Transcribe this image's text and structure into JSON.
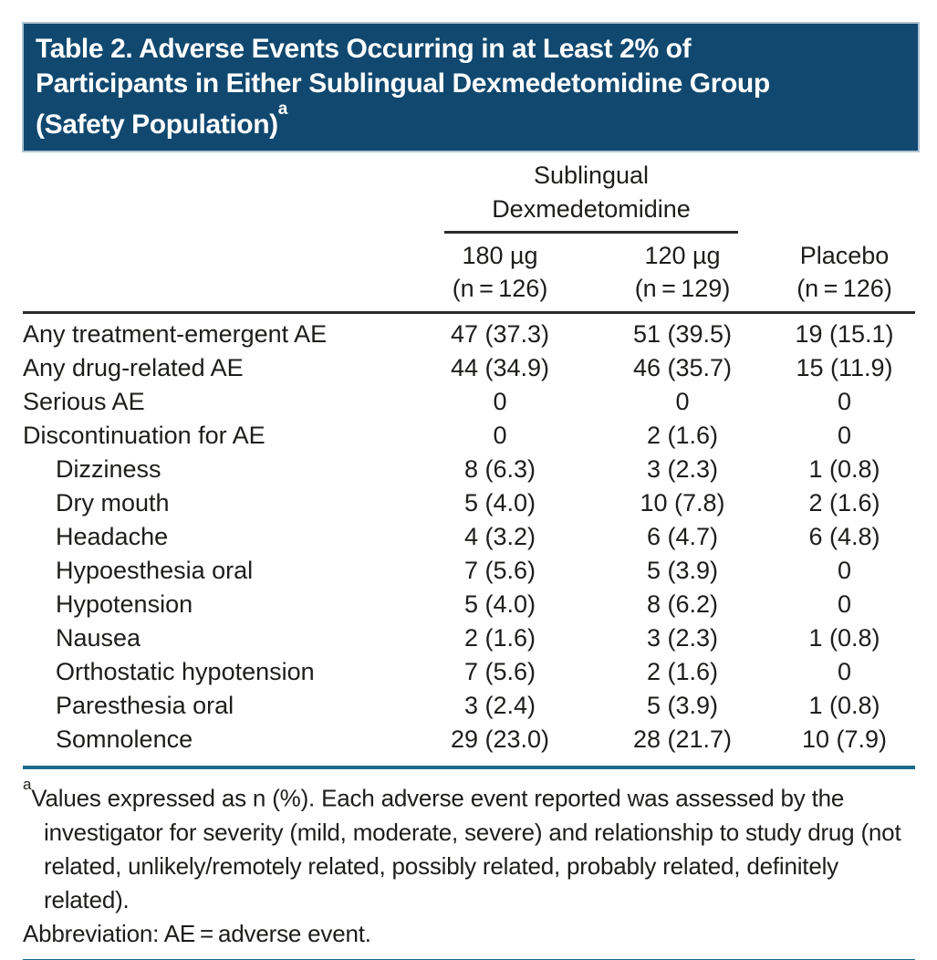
{
  "colors": {
    "title_bar_bg": "#11486F",
    "title_text": "#ffffff",
    "teal_rule": "#1b6a8e",
    "black_rule": "#2b2b29",
    "body_text": "#1d1d1b",
    "page_bg": "#ffffff"
  },
  "title": {
    "lines": [
      "Table 2. Adverse Events Occurring in at Least 2% of",
      "Participants in Either Sublingual Dexmedetomidine Group",
      "(Safety Population)"
    ],
    "footnote_marker": "a"
  },
  "table": {
    "spanner": {
      "line1": "Sublingual",
      "line2": "Dexmedetomidine"
    },
    "columns": [
      {
        "line1": "180 µg",
        "line2": "(n = 126)"
      },
      {
        "line1": "120 µg",
        "line2": "(n = 129)"
      },
      {
        "line1": "Placebo",
        "line2": "(n = 126)"
      }
    ],
    "rows": [
      {
        "label": "Any treatment-emergent AE",
        "c1": "47 (37.3)",
        "c2": "51 (39.5)",
        "c3": "19 (15.1)"
      },
      {
        "label": "Any drug-related AE",
        "c1": "44 (34.9)",
        "c2": "46 (35.7)",
        "c3": "15 (11.9)"
      },
      {
        "label": "Serious AE",
        "c1": "0",
        "c2": "0",
        "c3": "0"
      },
      {
        "label": "Discontinuation for AE",
        "c1": "0",
        "c2": "2 (1.6)",
        "c3": "0"
      },
      {
        "label": "Dizziness",
        "c1": "8 (6.3)",
        "c2": "3 (2.3)",
        "c3": "1 (0.8)"
      },
      {
        "label": "Dry mouth",
        "c1": "5 (4.0)",
        "c2": "10 (7.8)",
        "c3": "2 (1.6)"
      },
      {
        "label": "Headache",
        "c1": "4 (3.2)",
        "c2": "6 (4.7)",
        "c3": "6 (4.8)"
      },
      {
        "label": "Hypoesthesia oral",
        "c1": "7 (5.6)",
        "c2": "5 (3.9)",
        "c3": "0"
      },
      {
        "label": "Hypotension",
        "c1": "5 (4.0)",
        "c2": "8 (6.2)",
        "c3": "0"
      },
      {
        "label": "Nausea",
        "c1": "2 (1.6)",
        "c2": "3 (2.3)",
        "c3": "1 (0.8)"
      },
      {
        "label": "Orthostatic hypotension",
        "c1": "7 (5.6)",
        "c2": "2 (1.6)",
        "c3": "0"
      },
      {
        "label": "Paresthesia oral",
        "c1": "3 (2.4)",
        "c2": "5 (3.9)",
        "c3": "1 (0.8)"
      },
      {
        "label": "Somnolence",
        "c1": "29 (23.0)",
        "c2": "28 (21.7)",
        "c3": "10 (7.9)"
      }
    ]
  },
  "footnotes": {
    "marker": "a",
    "note": "Values expressed as n (%). Each adverse event reported was assessed by the investigator for severity (mild, moderate, severe) and relationship to study drug (not related, unlikely/remotely related, possibly related, probably related, definitely related).",
    "abbreviation": "Abbreviation: AE = adverse event."
  }
}
